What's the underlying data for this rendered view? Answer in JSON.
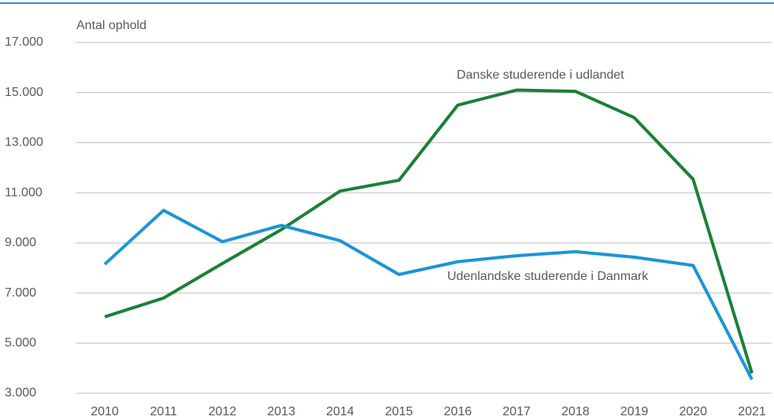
{
  "chart_data": {
    "type": "line",
    "y_label": "Antal ophold",
    "x": [
      "2010",
      "2011",
      "2012",
      "2013",
      "2014",
      "2015",
      "2016",
      "2017",
      "2018",
      "2019",
      "2020",
      "2021"
    ],
    "series": [
      {
        "name": "Danske studerende i udlandet",
        "color": "#1a8038",
        "values": [
          6050,
          6800,
          8180,
          9530,
          11070,
          11500,
          14500,
          15100,
          15050,
          14000,
          11540,
          3800
        ]
      },
      {
        "name": "Udenlandske studerende i Danmark",
        "color": "#1b95d6",
        "values": [
          8150,
          10300,
          9050,
          9700,
          9090,
          7740,
          8250,
          8490,
          8650,
          8430,
          8100,
          3550
        ]
      }
    ],
    "ylim": [
      3000,
      17000
    ],
    "yticks": [
      {
        "value": 3000,
        "label": "3.000"
      },
      {
        "value": 5000,
        "label": "5.000"
      },
      {
        "value": 7000,
        "label": "7.000"
      },
      {
        "value": 9000,
        "label": "9.000"
      },
      {
        "value": 11000,
        "label": "11.000"
      },
      {
        "value": 13000,
        "label": "13.000"
      },
      {
        "value": 15000,
        "label": "15.000"
      },
      {
        "value": 17000,
        "label": "17.000"
      }
    ],
    "grid": true
  }
}
